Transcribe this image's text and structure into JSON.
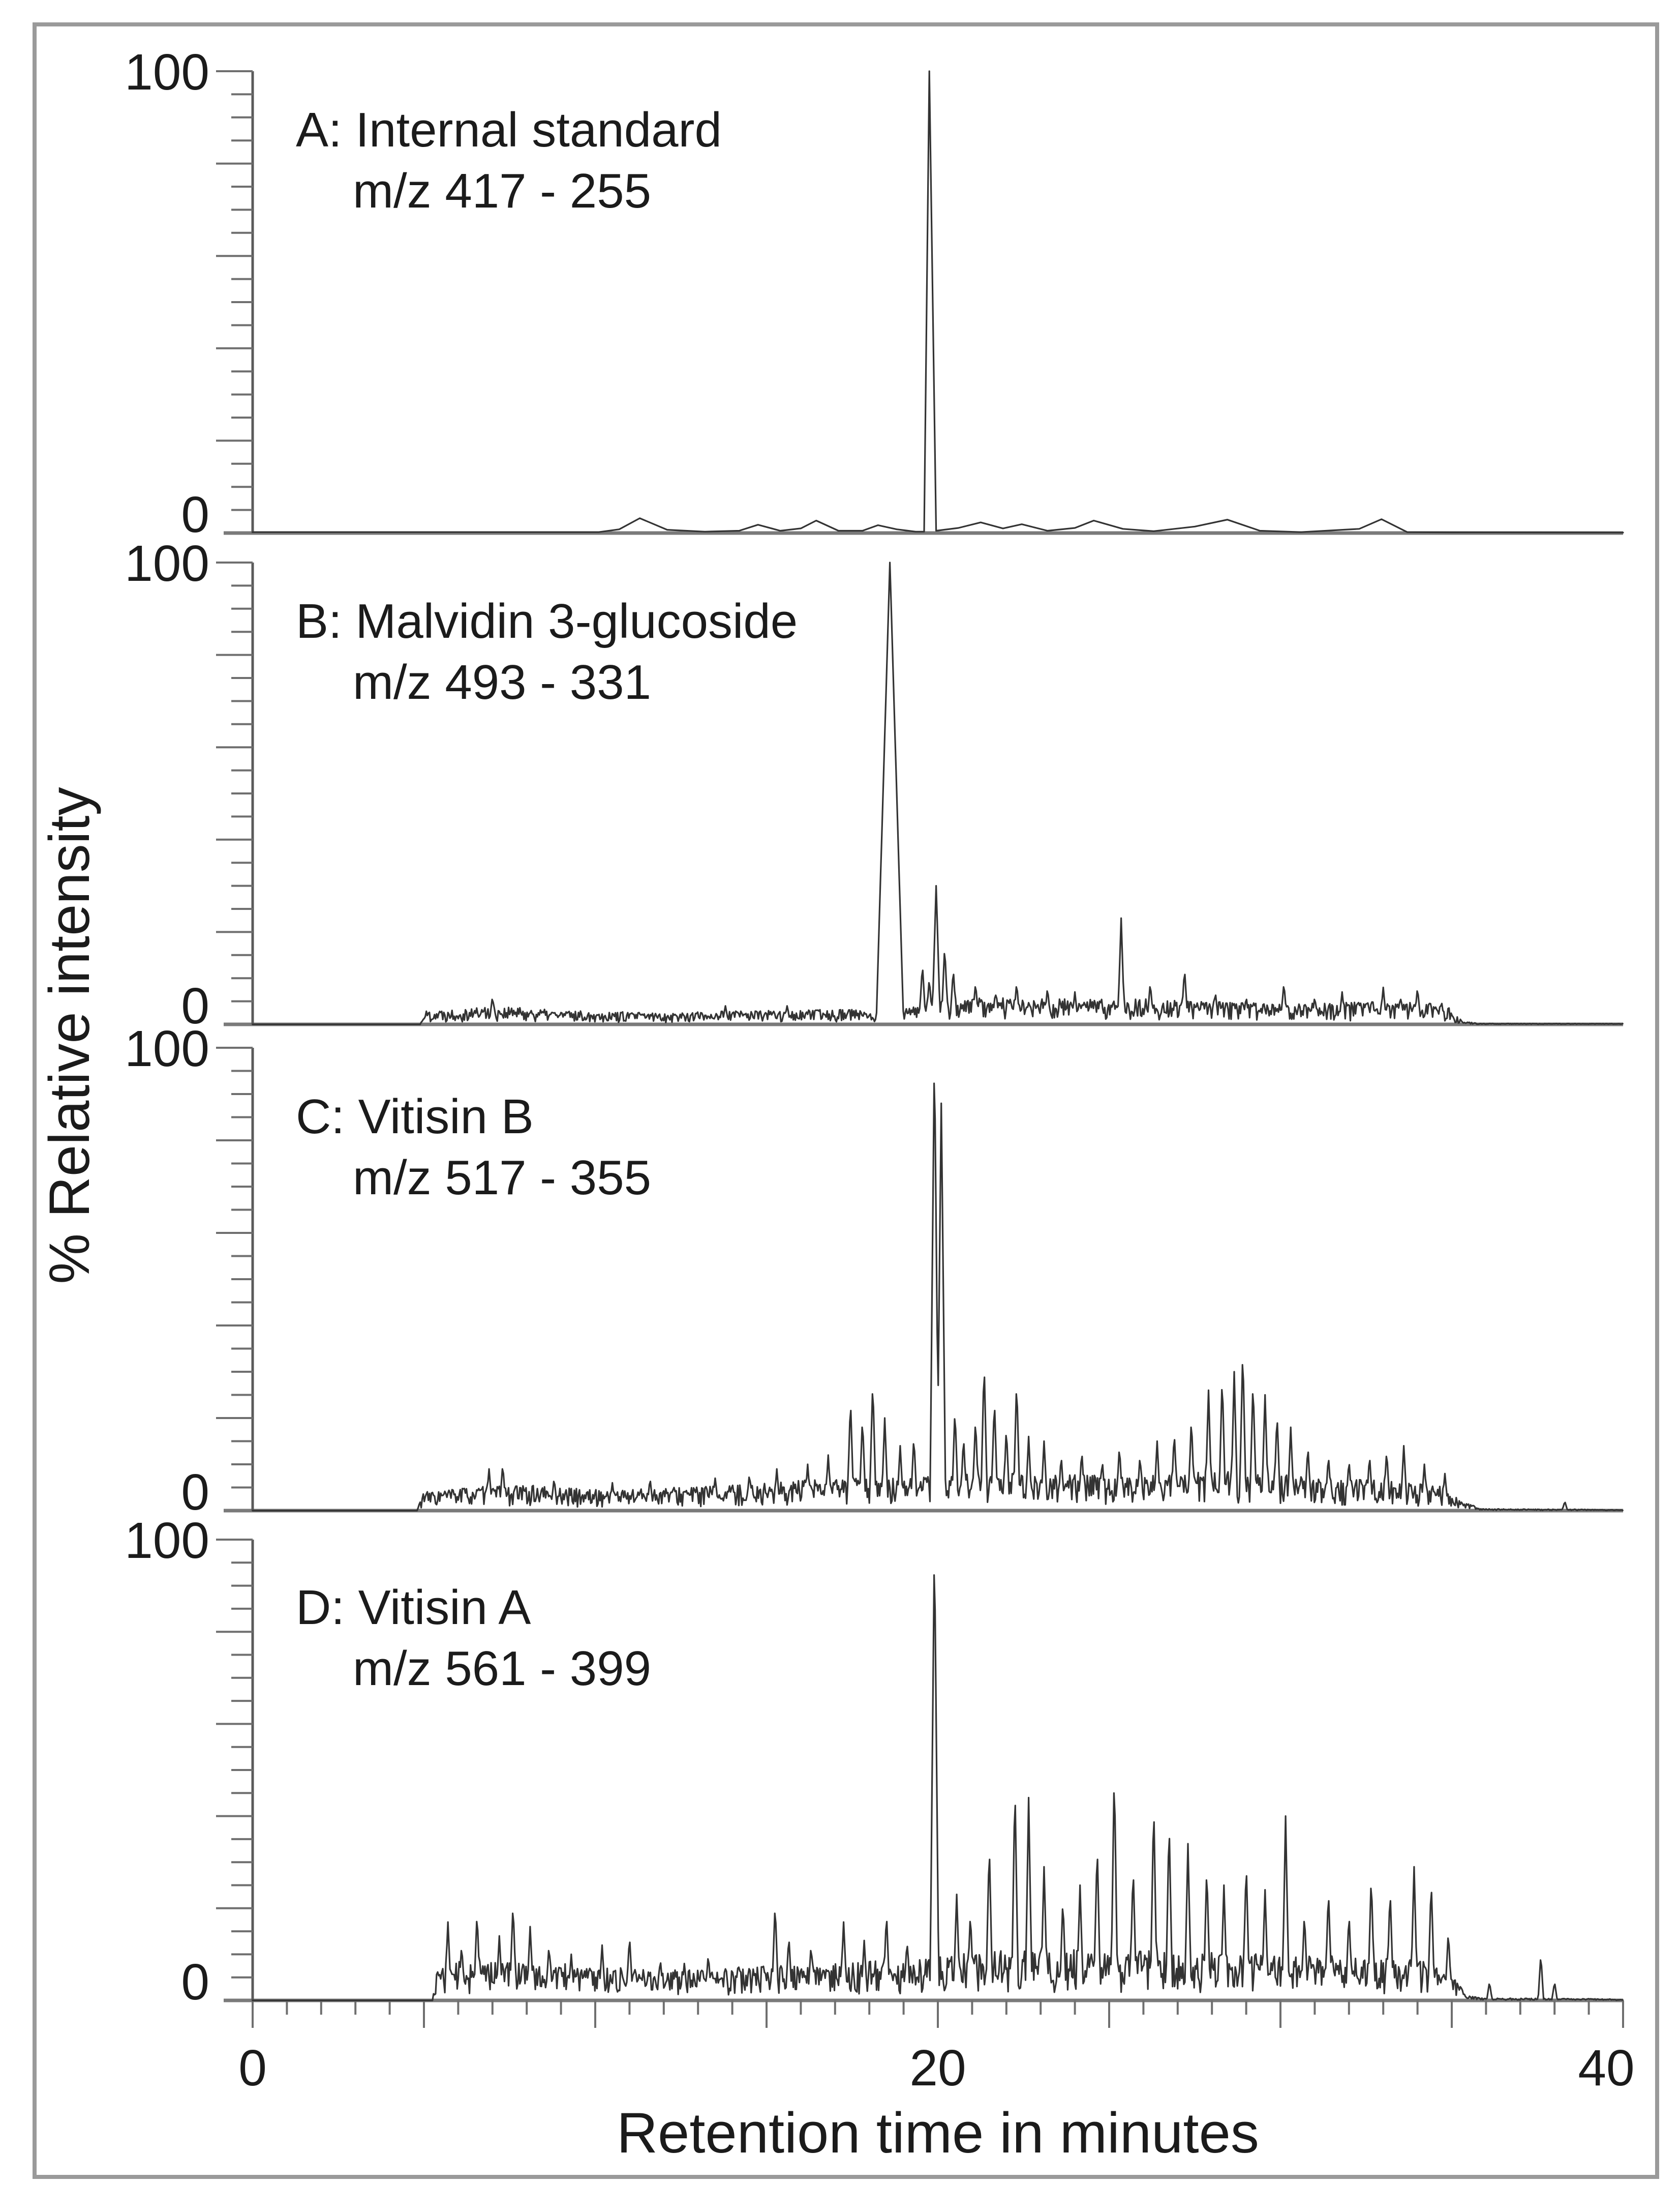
{
  "figure": {
    "description": "Four stacked MRM chromatograms of wine pigments",
    "border_color": "#9a9a9a",
    "trace_color": "#333333",
    "axis_color": "#6f6f6f",
    "text_color": "#1b1b1b",
    "background": "#ffffff"
  },
  "axis": {
    "x_tick_labels": [
      "0",
      "20",
      "40"
    ],
    "x_title": "Retention time in minutes",
    "y_title": "% Relative intensity"
  },
  "chart_data": [
    {
      "type": "line",
      "panel": "A",
      "title": "A: Internal standard",
      "transition": "m/z 417 - 255",
      "xlabel": "Retention time in minutes",
      "ylabel": "% Relative intensity",
      "xlim": [
        0,
        40
      ],
      "ylim": [
        0,
        100
      ],
      "x_units": "minutes",
      "x_tick_minor": 1,
      "x_tick_major": 5,
      "y_tick_minor": 5,
      "y_tick_major": 20,
      "y_max_label": "100",
      "y_min_label": "0",
      "main_peak": {
        "rt": 19.75,
        "intensity": 100
      },
      "points": [
        [
          0,
          0.2
        ],
        [
          10.1,
          0.2
        ],
        [
          10.7,
          0.8
        ],
        [
          11.3,
          3.2
        ],
        [
          12.1,
          0.7
        ],
        [
          13.2,
          0.3
        ],
        [
          14.2,
          0.5
        ],
        [
          14.75,
          1.8
        ],
        [
          15.4,
          0.5
        ],
        [
          16.0,
          1.0
        ],
        [
          16.45,
          2.7
        ],
        [
          17.1,
          0.5
        ],
        [
          17.8,
          0.5
        ],
        [
          18.25,
          1.7
        ],
        [
          18.8,
          0.8
        ],
        [
          19.35,
          0.3
        ],
        [
          19.6,
          0.3
        ],
        [
          19.75,
          100
        ],
        [
          19.95,
          0.5
        ],
        [
          20.6,
          1.1
        ],
        [
          21.25,
          2.3
        ],
        [
          21.9,
          1.0
        ],
        [
          22.45,
          1.9
        ],
        [
          23.2,
          0.5
        ],
        [
          24.0,
          1.1
        ],
        [
          24.55,
          2.7
        ],
        [
          25.4,
          0.9
        ],
        [
          26.3,
          0.4
        ],
        [
          27.5,
          1.4
        ],
        [
          28.45,
          2.9
        ],
        [
          29.4,
          0.5
        ],
        [
          30.6,
          0.2
        ],
        [
          32.3,
          0.9
        ],
        [
          32.95,
          3.0
        ],
        [
          33.7,
          0.2
        ],
        [
          35,
          0.15
        ],
        [
          40,
          0.1
        ]
      ]
    },
    {
      "type": "line",
      "panel": "B",
      "title": "B: Malvidin 3-glucoside",
      "transition": "m/z 493 - 331",
      "xlabel": "Retention time in minutes",
      "ylabel": "% Relative intensity",
      "xlim": [
        0,
        40
      ],
      "ylim": [
        0,
        100
      ],
      "x_units": "minutes",
      "x_tick_minor": 1,
      "x_tick_major": 5,
      "y_tick_minor": 5,
      "y_tick_major": 20,
      "y_max_label": "100",
      "y_min_label": "0",
      "main_peak": {
        "rt": 18.6,
        "intensity": 100
      },
      "seed": 22,
      "peaks": [
        [
          18.6,
          100,
          0.4
        ],
        [
          19.55,
          13,
          0.1
        ],
        [
          19.75,
          10,
          0.1
        ],
        [
          19.95,
          30,
          0.12
        ],
        [
          20.2,
          17,
          0.1
        ],
        [
          20.45,
          12,
          0.1
        ],
        [
          7.0,
          6,
          0.1
        ],
        [
          13.8,
          4,
          0.1
        ],
        [
          15.6,
          4,
          0.1
        ],
        [
          21.1,
          9,
          0.1
        ],
        [
          21.7,
          7,
          0.1
        ],
        [
          22.3,
          9,
          0.1
        ],
        [
          23.2,
          8,
          0.1
        ],
        [
          24.0,
          7,
          0.1
        ],
        [
          25.35,
          23,
          0.1
        ],
        [
          26.2,
          9,
          0.1
        ],
        [
          27.2,
          12,
          0.1
        ],
        [
          28.1,
          7,
          0.1
        ],
        [
          29.0,
          6,
          0.1
        ],
        [
          30.1,
          9,
          0.1
        ],
        [
          31.0,
          6,
          0.1
        ],
        [
          31.8,
          7,
          0.1
        ],
        [
          33.0,
          8,
          0.1
        ],
        [
          33.5,
          6,
          0.1
        ],
        [
          34.0,
          8,
          0.1
        ],
        [
          34.7,
          5,
          0.1
        ]
      ],
      "noise_envelope": [
        [
          0,
          0
        ],
        [
          4.9,
          0
        ],
        [
          5.0,
          3
        ],
        [
          7,
          4
        ],
        [
          9,
          3
        ],
        [
          12,
          2.5
        ],
        [
          14,
          3
        ],
        [
          16,
          3
        ],
        [
          17.5,
          3.5
        ],
        [
          18.2,
          2
        ],
        [
          19.4,
          4
        ],
        [
          20.6,
          6
        ],
        [
          23,
          5.5
        ],
        [
          26,
          5.5
        ],
        [
          28,
          5
        ],
        [
          30,
          4.5
        ],
        [
          32,
          5
        ],
        [
          34,
          5
        ],
        [
          34.9,
          4
        ],
        [
          35.3,
          0.8
        ],
        [
          35.8,
          0.2
        ],
        [
          40,
          0.15
        ]
      ]
    },
    {
      "type": "line",
      "panel": "C",
      "title": "C: Vitisin B",
      "transition": "m/z 517 - 355",
      "xlabel": "Retention time in minutes",
      "ylabel": "% Relative intensity",
      "xlim": [
        0,
        40
      ],
      "ylim": [
        0,
        100
      ],
      "x_units": "minutes",
      "x_tick_minor": 1,
      "x_tick_major": 5,
      "y_tick_minor": 5,
      "y_tick_major": 20,
      "y_max_label": "100",
      "y_min_label": "0",
      "main_peak": {
        "rt": 19.9,
        "intensity": 100
      },
      "seed": 33,
      "peaks": [
        [
          19.9,
          100,
          0.13
        ],
        [
          20.1,
          88,
          0.13
        ],
        [
          6.9,
          9,
          0.1
        ],
        [
          7.3,
          10,
          0.1
        ],
        [
          8.8,
          7,
          0.1
        ],
        [
          10.5,
          6,
          0.1
        ],
        [
          11.6,
          7,
          0.1
        ],
        [
          13.5,
          7,
          0.1
        ],
        [
          14.5,
          8,
          0.1
        ],
        [
          15.3,
          9,
          0.1
        ],
        [
          16.2,
          10,
          0.1
        ],
        [
          16.8,
          12,
          0.1
        ],
        [
          17.45,
          24,
          0.1
        ],
        [
          17.8,
          20,
          0.1
        ],
        [
          18.1,
          28,
          0.1
        ],
        [
          18.45,
          20,
          0.1
        ],
        [
          18.9,
          14,
          0.1
        ],
        [
          19.3,
          16,
          0.1
        ],
        [
          20.5,
          22,
          0.1
        ],
        [
          20.75,
          16,
          0.1
        ],
        [
          21.1,
          20,
          0.1
        ],
        [
          21.35,
          32,
          0.1
        ],
        [
          21.65,
          24,
          0.1
        ],
        [
          22.0,
          18,
          0.1
        ],
        [
          22.3,
          28,
          0.1
        ],
        [
          22.65,
          16,
          0.1
        ],
        [
          23.1,
          15,
          0.1
        ],
        [
          23.6,
          12,
          0.1
        ],
        [
          24.2,
          13,
          0.1
        ],
        [
          24.8,
          11,
          0.1
        ],
        [
          25.3,
          14,
          0.1
        ],
        [
          25.9,
          12,
          0.1
        ],
        [
          26.4,
          15,
          0.1
        ],
        [
          26.9,
          17,
          0.1
        ],
        [
          27.4,
          20,
          0.1
        ],
        [
          27.9,
          26,
          0.1
        ],
        [
          28.3,
          29,
          0.1
        ],
        [
          28.65,
          30,
          0.1
        ],
        [
          28.9,
          35,
          0.1
        ],
        [
          29.2,
          28,
          0.1
        ],
        [
          29.55,
          25,
          0.1
        ],
        [
          29.9,
          21,
          0.1
        ],
        [
          30.3,
          18,
          0.1
        ],
        [
          30.8,
          14,
          0.1
        ],
        [
          31.4,
          12,
          0.1
        ],
        [
          32.0,
          11,
          0.1
        ],
        [
          32.6,
          12,
          0.1
        ],
        [
          33.1,
          13,
          0.1
        ],
        [
          33.6,
          14,
          0.1
        ],
        [
          34.2,
          10,
          0.1
        ],
        [
          34.8,
          8,
          0.1
        ],
        [
          38.3,
          2,
          0.08
        ]
      ],
      "noise_envelope": [
        [
          0,
          0
        ],
        [
          4.8,
          0
        ],
        [
          4.95,
          4
        ],
        [
          6,
          5
        ],
        [
          8,
          5.5
        ],
        [
          10,
          4.5
        ],
        [
          12,
          5
        ],
        [
          14,
          5.5
        ],
        [
          16,
          6.5
        ],
        [
          17.5,
          7
        ],
        [
          19,
          7
        ],
        [
          20.6,
          8
        ],
        [
          23,
          8
        ],
        [
          25,
          7.5
        ],
        [
          27,
          8
        ],
        [
          29,
          9
        ],
        [
          31,
          7
        ],
        [
          33,
          6.5
        ],
        [
          34.6,
          5.5
        ],
        [
          35.3,
          2
        ],
        [
          35.9,
          0.4
        ],
        [
          37.4,
          0.3
        ],
        [
          38.6,
          0.3
        ],
        [
          40,
          0.15
        ]
      ]
    },
    {
      "type": "line",
      "panel": "D",
      "title": "D: Vitisin A",
      "transition": "m/z 561 - 399",
      "xlabel": "Retention time in minutes",
      "ylabel": "% Relative intensity",
      "xlim": [
        0,
        40
      ],
      "ylim": [
        0,
        100
      ],
      "x_units": "minutes",
      "x_tick_minor": 1,
      "x_tick_major": 5,
      "y_tick_minor": 5,
      "y_tick_major": 20,
      "y_max_label": "100",
      "y_min_label": "0",
      "main_peak": {
        "rt": 19.9,
        "intensity": 100
      },
      "seed": 44,
      "peaks": [
        [
          19.9,
          100,
          0.13
        ],
        [
          5.7,
          17,
          0.1
        ],
        [
          6.1,
          12,
          0.1
        ],
        [
          6.55,
          19,
          0.1
        ],
        [
          7.2,
          14,
          0.1
        ],
        [
          7.6,
          21,
          0.1
        ],
        [
          8.1,
          16,
          0.1
        ],
        [
          8.65,
          12,
          0.1
        ],
        [
          9.3,
          10,
          0.1
        ],
        [
          10.2,
          12,
          0.1
        ],
        [
          11.0,
          14,
          0.1
        ],
        [
          11.9,
          9,
          0.1
        ],
        [
          12.6,
          8,
          0.1
        ],
        [
          13.3,
          10,
          0.1
        ],
        [
          14.2,
          8,
          0.1
        ],
        [
          15.25,
          21,
          0.1
        ],
        [
          15.65,
          14,
          0.1
        ],
        [
          16.3,
          12,
          0.1
        ],
        [
          17.25,
          17,
          0.1
        ],
        [
          17.85,
          13,
          0.1
        ],
        [
          18.5,
          19,
          0.1
        ],
        [
          19.1,
          13,
          0.1
        ],
        [
          20.55,
          23,
          0.1
        ],
        [
          20.95,
          19,
          0.1
        ],
        [
          21.5,
          34,
          0.1
        ],
        [
          22.25,
          47,
          0.1
        ],
        [
          22.65,
          44,
          0.1
        ],
        [
          23.1,
          29,
          0.1
        ],
        [
          23.65,
          22,
          0.1
        ],
        [
          24.15,
          25,
          0.1
        ],
        [
          24.65,
          34,
          0.1
        ],
        [
          25.15,
          50,
          0.1
        ],
        [
          25.7,
          29,
          0.1
        ],
        [
          26.3,
          43,
          0.1
        ],
        [
          26.75,
          39,
          0.1
        ],
        [
          27.3,
          34,
          0.1
        ],
        [
          27.85,
          29,
          0.1
        ],
        [
          28.35,
          25,
          0.1
        ],
        [
          29.0,
          30,
          0.1
        ],
        [
          29.55,
          24,
          0.1
        ],
        [
          30.15,
          40,
          0.1
        ],
        [
          30.7,
          19,
          0.1
        ],
        [
          31.4,
          24,
          0.1
        ],
        [
          32.0,
          19,
          0.1
        ],
        [
          32.65,
          27,
          0.1
        ],
        [
          33.2,
          24,
          0.1
        ],
        [
          33.9,
          29,
          0.1
        ],
        [
          34.4,
          26,
          0.1
        ],
        [
          34.9,
          15,
          0.1
        ],
        [
          36.1,
          4,
          0.08
        ],
        [
          37.6,
          10,
          0.08
        ],
        [
          38.0,
          4,
          0.08
        ]
      ],
      "noise_envelope": [
        [
          0,
          0
        ],
        [
          5.25,
          0
        ],
        [
          5.4,
          8
        ],
        [
          7,
          9
        ],
        [
          9,
          8
        ],
        [
          11,
          7
        ],
        [
          13,
          6.5
        ],
        [
          15,
          7.5
        ],
        [
          17,
          8
        ],
        [
          19,
          9
        ],
        [
          20.5,
          10
        ],
        [
          22,
          11
        ],
        [
          24,
          11
        ],
        [
          26,
          11
        ],
        [
          28,
          10.5
        ],
        [
          30,
          10
        ],
        [
          32,
          9.5
        ],
        [
          34,
          9
        ],
        [
          35,
          6
        ],
        [
          35.45,
          1
        ],
        [
          35.9,
          0.5
        ],
        [
          39.5,
          0.35
        ],
        [
          40,
          0.15
        ]
      ]
    }
  ]
}
